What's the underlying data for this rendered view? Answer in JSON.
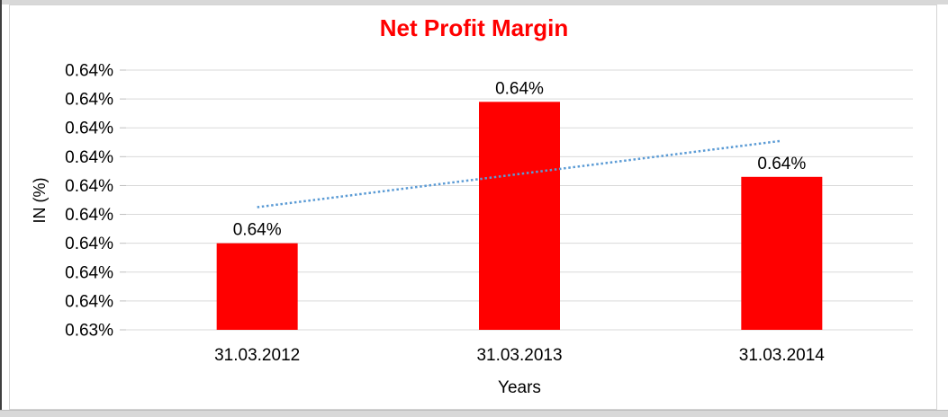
{
  "chart_data": {
    "type": "bar",
    "title": "Net Profit Margin",
    "title_color": "#FF0000",
    "xlabel": "Years",
    "ylabel": "IN (%)",
    "categories": [
      "31.03.2012",
      "31.03.2013",
      "31.03.2014"
    ],
    "series": [
      {
        "name": "Net Profit Margin",
        "values": [
          0.638,
          0.6429,
          0.6403
        ]
      }
    ],
    "value_unit": "percent",
    "bar_value_labels": [
      "0.64%",
      "0.64%",
      "0.64%"
    ],
    "bar_color": "#FF0000",
    "ylim": [
      0.635,
      0.644
    ],
    "ytick_labels_top_to_bottom": [
      "0.64%",
      "0.64%",
      "0.64%",
      "0.64%",
      "0.64%",
      "0.64%",
      "0.64%",
      "0.64%",
      "0.64%",
      "0.63%"
    ],
    "grid": true,
    "gridline_color": "#D9D9D9",
    "tick_color": "#BFBFBF",
    "axis_text_color": "#000000",
    "legend_position": "none",
    "trendline": {
      "type": "linear",
      "style": "dotted",
      "color": "#5B9BD5"
    }
  }
}
